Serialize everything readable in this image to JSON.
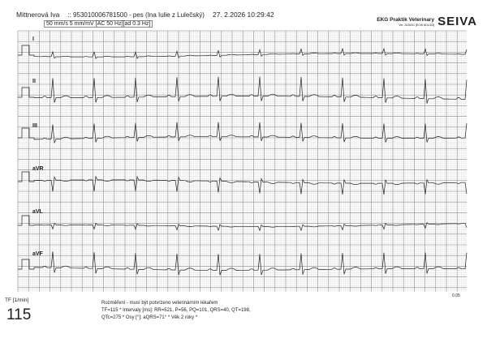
{
  "header": {
    "patient": "Mittnerová Iva",
    "record": ":: 953010006781500 - pes (Ina Iulie z Lulečský)",
    "datetime": "27. 2.2026  10:29:42",
    "settings": "50 mm/s  5 mm/mV  [AC 50 Hz][ad 0.3 Hz]",
    "brand": "EKG Praktik Veterinary",
    "brand_sub": "Ver. 2026/01 [ECW ADL/D3]",
    "logo": "SEIVA"
  },
  "leads": [
    "I",
    "II",
    "III",
    "aVR",
    "aVL",
    "aVF"
  ],
  "footer": {
    "tf_label": "TF [1/min]",
    "tf_value": "115",
    "note_line1": "Rozměření - musí být potvrzeno veterinárním lékařem",
    "note_line2": "TF=115 * Intervaly [ms]: RR=521, P=56, PQ=101, QRS=40, QT=198,",
    "note_line3": "QTc=275 * Osy [°]: aQRS=71° * Věk 2 roky *",
    "scale": "0.05"
  },
  "colors": {
    "grid_major": "#8a8a8a",
    "grid_minor": "#c8c8c8",
    "trace": "#222222"
  }
}
